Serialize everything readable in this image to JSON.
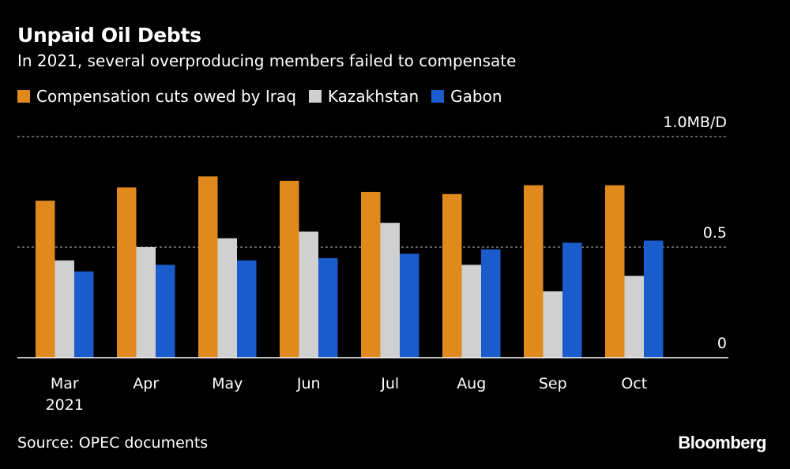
{
  "chart_data": {
    "type": "bar",
    "title": "Unpaid Oil Debts",
    "subtitle": "In 2021, several overproducing members failed to compensate",
    "categories": [
      "Mar",
      "Apr",
      "May",
      "Jun",
      "Jul",
      "Aug",
      "Sep",
      "Oct"
    ],
    "category_year": "2021",
    "series": [
      {
        "name": "Compensation cuts owed by Iraq",
        "color": "#e08a1e",
        "values": [
          0.71,
          0.77,
          0.82,
          0.8,
          0.75,
          0.74,
          0.78,
          0.78
        ]
      },
      {
        "name": "Kazakhstan",
        "color": "#d0d0d0",
        "values": [
          0.44,
          0.5,
          0.54,
          0.57,
          0.61,
          0.42,
          0.3,
          0.37
        ]
      },
      {
        "name": "Gabon",
        "color": "#1a5ccc",
        "values": [
          0.39,
          0.42,
          0.44,
          0.45,
          0.47,
          0.49,
          0.52,
          0.53
        ]
      }
    ],
    "yticks": [
      {
        "value": 1.0,
        "label": "1.0MB/D"
      },
      {
        "value": 0.5,
        "label": "0.5"
      },
      {
        "value": 0,
        "label": "0"
      }
    ],
    "ylim": [
      0,
      1.0
    ],
    "grid": true,
    "legend_position": "top-left"
  },
  "source": "Source: OPEC documents",
  "brand": "Bloomberg"
}
